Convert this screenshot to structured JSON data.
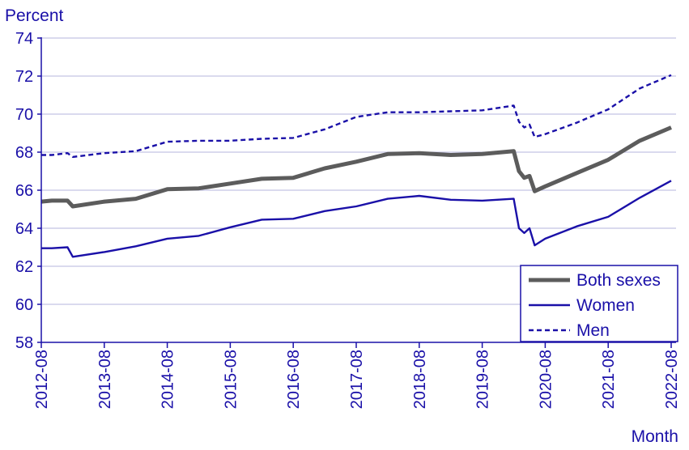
{
  "chart_data": {
    "type": "line",
    "ylabel": "Percent",
    "xlabel": "Month",
    "ylim": [
      58,
      74
    ],
    "yticks": [
      58,
      60,
      62,
      64,
      66,
      68,
      70,
      72,
      74
    ],
    "x_range": [
      "2012-08",
      "2022-08"
    ],
    "xticks": [
      "2012-08",
      "2013-08",
      "2014-08",
      "2015-08",
      "2016-08",
      "2017-08",
      "2018-08",
      "2019-08",
      "2020-08",
      "2021-08",
      "2022-08"
    ],
    "grid": "horizontal",
    "legend_position": "bottom-right",
    "colors": {
      "both": "#5c5c5c",
      "women": "#1a10a8",
      "men": "#1a10a8",
      "grid": "#c4c4e4",
      "axis": "#1a10a8"
    },
    "series": [
      {
        "name": "Both sexes",
        "style": "solid-thick",
        "points": [
          [
            "2012-08",
            65.4
          ],
          [
            "2012-10",
            65.45
          ],
          [
            "2013-01",
            65.45
          ],
          [
            "2013-02",
            65.15
          ],
          [
            "2013-08",
            65.4
          ],
          [
            "2014-02",
            65.55
          ],
          [
            "2014-08",
            66.05
          ],
          [
            "2015-02",
            66.1
          ],
          [
            "2015-08",
            66.35
          ],
          [
            "2016-02",
            66.6
          ],
          [
            "2016-08",
            66.65
          ],
          [
            "2017-02",
            67.15
          ],
          [
            "2017-08",
            67.5
          ],
          [
            "2018-02",
            67.9
          ],
          [
            "2018-08",
            67.95
          ],
          [
            "2019-02",
            67.85
          ],
          [
            "2019-08",
            67.9
          ],
          [
            "2020-02",
            68.05
          ],
          [
            "2020-03",
            67.0
          ],
          [
            "2020-04",
            66.65
          ],
          [
            "2020-05",
            66.75
          ],
          [
            "2020-06",
            65.95
          ],
          [
            "2020-08",
            66.2
          ],
          [
            "2021-02",
            66.9
          ],
          [
            "2021-08",
            67.6
          ],
          [
            "2022-02",
            68.6
          ],
          [
            "2022-08",
            69.3
          ]
        ]
      },
      {
        "name": "Women",
        "style": "solid-thin",
        "points": [
          [
            "2012-08",
            62.95
          ],
          [
            "2012-10",
            62.95
          ],
          [
            "2013-01",
            63.0
          ],
          [
            "2013-02",
            62.5
          ],
          [
            "2013-08",
            62.75
          ],
          [
            "2014-02",
            63.05
          ],
          [
            "2014-08",
            63.45
          ],
          [
            "2015-02",
            63.6
          ],
          [
            "2015-08",
            64.05
          ],
          [
            "2016-02",
            64.45
          ],
          [
            "2016-08",
            64.5
          ],
          [
            "2017-02",
            64.9
          ],
          [
            "2017-08",
            65.15
          ],
          [
            "2018-02",
            65.55
          ],
          [
            "2018-08",
            65.7
          ],
          [
            "2019-02",
            65.5
          ],
          [
            "2019-08",
            65.45
          ],
          [
            "2020-02",
            65.55
          ],
          [
            "2020-03",
            64.0
          ],
          [
            "2020-04",
            63.75
          ],
          [
            "2020-05",
            64.0
          ],
          [
            "2020-06",
            63.1
          ],
          [
            "2020-08",
            63.45
          ],
          [
            "2021-02",
            64.1
          ],
          [
            "2021-08",
            64.6
          ],
          [
            "2022-02",
            65.6
          ],
          [
            "2022-08",
            66.5
          ]
        ]
      },
      {
        "name": "Men",
        "style": "dashed",
        "points": [
          [
            "2012-08",
            67.85
          ],
          [
            "2012-10",
            67.85
          ],
          [
            "2013-01",
            67.95
          ],
          [
            "2013-02",
            67.75
          ],
          [
            "2013-08",
            67.95
          ],
          [
            "2014-02",
            68.05
          ],
          [
            "2014-08",
            68.55
          ],
          [
            "2015-02",
            68.6
          ],
          [
            "2015-08",
            68.6
          ],
          [
            "2016-02",
            68.7
          ],
          [
            "2016-08",
            68.75
          ],
          [
            "2017-02",
            69.2
          ],
          [
            "2017-08",
            69.85
          ],
          [
            "2018-02",
            70.1
          ],
          [
            "2018-08",
            70.1
          ],
          [
            "2019-02",
            70.15
          ],
          [
            "2019-08",
            70.2
          ],
          [
            "2020-02",
            70.45
          ],
          [
            "2020-03",
            69.6
          ],
          [
            "2020-04",
            69.3
          ],
          [
            "2020-05",
            69.45
          ],
          [
            "2020-06",
            68.8
          ],
          [
            "2020-08",
            68.95
          ],
          [
            "2021-02",
            69.55
          ],
          [
            "2021-08",
            70.25
          ],
          [
            "2022-02",
            71.35
          ],
          [
            "2022-08",
            72.05
          ]
        ]
      }
    ]
  }
}
